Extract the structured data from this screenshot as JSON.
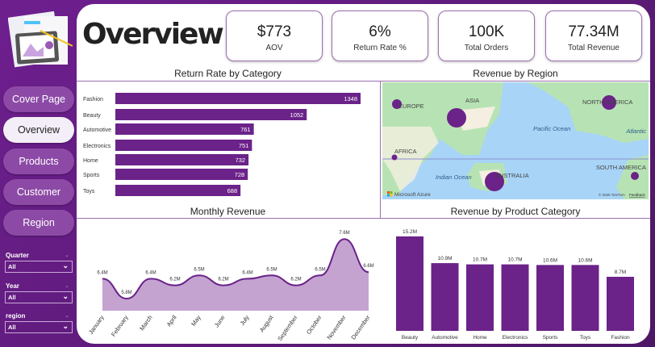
{
  "header": {
    "title": "Overview"
  },
  "kpis": [
    {
      "value": "$773",
      "label": "AOV"
    },
    {
      "value": "6%",
      "label": "Return Rate %"
    },
    {
      "value": "100K",
      "label": "Total Orders"
    },
    {
      "value": "77.34M",
      "label": "Total Revenue"
    }
  ],
  "nav": [
    {
      "label": "Cover Page"
    },
    {
      "label": "Overview",
      "active": true
    },
    {
      "label": "Products"
    },
    {
      "label": "Customer"
    },
    {
      "label": "Region"
    }
  ],
  "filters": [
    {
      "label": "Quarter",
      "value": "All"
    },
    {
      "label": "Year",
      "value": "All"
    },
    {
      "label": "region",
      "value": "All"
    }
  ],
  "sections": {
    "return": "Return Rate by Category",
    "region": "Revenue by Region",
    "monthly": "Monthly Revenue",
    "product": "Revenue by Product Category"
  },
  "map": {
    "labels": [
      "EUROPE",
      "ASIA",
      "NORTH AMERICA",
      "AFRICA",
      "AUSTRALIA",
      "SOUTH AMERICA",
      "Pacific Ocean",
      "Indian Ocean",
      "Atlantic"
    ],
    "attribution": "Microsoft Azure",
    "copyright": "© 2025 TomTom",
    "feedback": "Feedback"
  },
  "colors": {
    "accent": "#6b2289",
    "area": "#c4a3d1",
    "line": "#6b2289"
  },
  "chart_data": [
    {
      "type": "bar",
      "orientation": "horizontal",
      "title": "Return Rate by Category",
      "categories": [
        "Fashion",
        "Beauty",
        "Automotive",
        "Electronics",
        "Home",
        "Sports",
        "Toys"
      ],
      "values": [
        1348,
        1052,
        761,
        751,
        732,
        728,
        688
      ]
    },
    {
      "type": "area",
      "title": "Monthly Revenue",
      "categories": [
        "January",
        "February",
        "March",
        "April",
        "May",
        "June",
        "July",
        "August",
        "September",
        "October",
        "November",
        "December"
      ],
      "values": [
        6.4,
        5.8,
        6.4,
        6.2,
        6.5,
        6.2,
        6.4,
        6.5,
        6.2,
        6.5,
        7.6,
        6.6
      ],
      "labels": [
        "6.4M",
        "5.8M",
        "6.4M",
        "6.2M",
        "6.5M",
        "6.2M",
        "6.4M",
        "6.5M",
        "6.2M",
        "6.5M",
        "7.6M",
        "6.6M"
      ]
    },
    {
      "type": "bar",
      "title": "Revenue by Product Category",
      "categories": [
        "Beauty",
        "Automotive",
        "Home",
        "Electronics",
        "Sports",
        "Toys",
        "Fashion"
      ],
      "values": [
        15.2,
        10.9,
        10.7,
        10.7,
        10.6,
        10.6,
        8.7
      ],
      "labels": [
        "15.2M",
        "10.9M",
        "10.7M",
        "10.7M",
        "10.6M",
        "10.6M",
        "8.7M"
      ]
    }
  ]
}
